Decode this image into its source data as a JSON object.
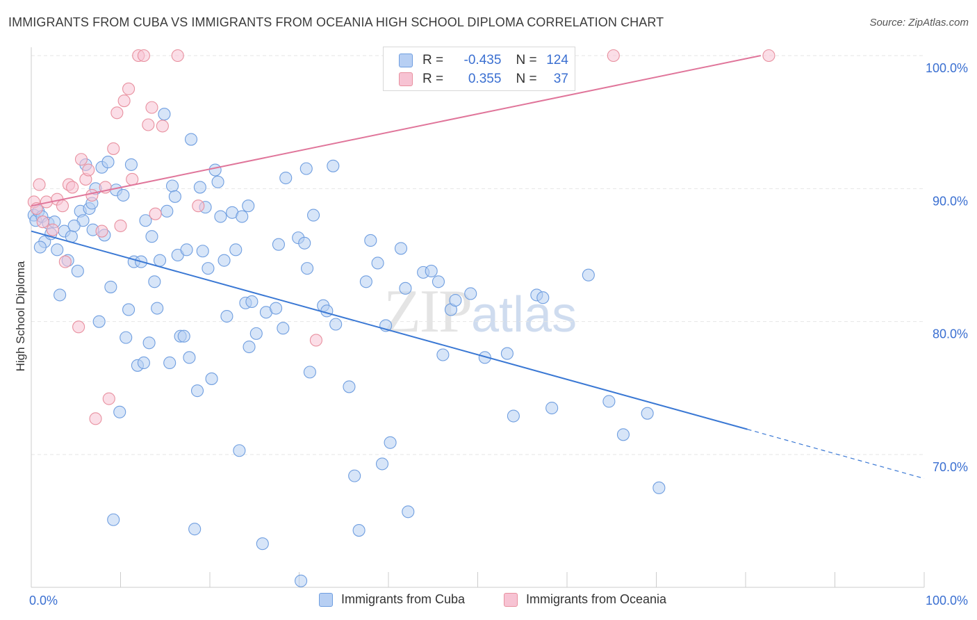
{
  "chart_data": {
    "type": "scatter",
    "title": "IMMIGRANTS FROM CUBA VS IMMIGRANTS FROM OCEANIA HIGH SCHOOL DIPLOMA CORRELATION CHART",
    "source": "Source: ZipAtlas.com",
    "ylabel": "High School Diploma",
    "xlabel": "",
    "x_tick_labels": [
      "0.0%",
      "100.0%"
    ],
    "y_tick_labels": [
      "100.0%",
      "90.0%",
      "80.0%",
      "70.0%"
    ],
    "y_ticks": [
      100,
      90,
      80,
      70
    ],
    "xlim": [
      0,
      100
    ],
    "ylim": [
      59.5,
      102.5
    ],
    "grid": true,
    "watermark": {
      "zip": "ZIP",
      "atlas": "atlas"
    },
    "legend": {
      "rows": [
        {
          "r_label": "R =",
          "r_value": "-0.435",
          "n_label": "N =",
          "n_value": "124"
        },
        {
          "r_label": "R =",
          "r_value": "0.355",
          "n_label": "N =",
          "n_value": "37"
        }
      ]
    },
    "colors": {
      "cuba_fill": "#b7cff3",
      "cuba_stroke": "#6f9ee0",
      "cuba_line": "#3a78d4",
      "oceania_fill": "#f7c3d3",
      "oceania_stroke": "#e8909f",
      "oceania_line": "#e0759a"
    },
    "series": [
      {
        "name": "Immigrants from Cuba",
        "trend": {
          "x0": 0,
          "y0": 86.8,
          "x1": 80.2,
          "y1": 71.9,
          "dash_to_x": 100,
          "dash_to_y": 68.2
        },
        "points": [
          [
            0.3,
            88.0
          ],
          [
            0.5,
            87.6
          ],
          [
            0.8,
            88.3
          ],
          [
            1.2,
            87.9
          ],
          [
            1.5,
            86.0
          ],
          [
            1.9,
            87.4
          ],
          [
            2.2,
            86.6
          ],
          [
            2.6,
            87.5
          ],
          [
            2.9,
            85.4
          ],
          [
            3.2,
            82.0
          ],
          [
            3.7,
            86.8
          ],
          [
            4.1,
            84.6
          ],
          [
            4.5,
            86.4
          ],
          [
            5.2,
            83.8
          ],
          [
            5.5,
            88.3
          ],
          [
            5.8,
            87.6
          ],
          [
            6.1,
            91.8
          ],
          [
            6.5,
            88.5
          ],
          [
            6.8,
            88.9
          ],
          [
            7.2,
            90.0
          ],
          [
            7.6,
            80.0
          ],
          [
            7.9,
            91.6
          ],
          [
            8.2,
            86.5
          ],
          [
            8.6,
            92.0
          ],
          [
            8.9,
            82.6
          ],
          [
            9.2,
            65.1
          ],
          [
            9.5,
            89.9
          ],
          [
            9.9,
            73.2
          ],
          [
            10.3,
            89.5
          ],
          [
            10.6,
            78.8
          ],
          [
            10.9,
            80.9
          ],
          [
            11.2,
            91.8
          ],
          [
            11.5,
            84.5
          ],
          [
            11.9,
            76.7
          ],
          [
            12.3,
            84.5
          ],
          [
            12.6,
            76.9
          ],
          [
            12.8,
            87.6
          ],
          [
            13.2,
            78.4
          ],
          [
            13.5,
            86.4
          ],
          [
            13.8,
            83.0
          ],
          [
            14.1,
            81.0
          ],
          [
            14.4,
            84.6
          ],
          [
            14.9,
            95.6
          ],
          [
            15.2,
            88.3
          ],
          [
            15.5,
            76.9
          ],
          [
            15.8,
            90.2
          ],
          [
            16.1,
            89.4
          ],
          [
            16.4,
            85.0
          ],
          [
            16.7,
            78.9
          ],
          [
            17.1,
            78.9
          ],
          [
            17.4,
            85.4
          ],
          [
            17.7,
            77.3
          ],
          [
            17.9,
            93.7
          ],
          [
            18.3,
            64.4
          ],
          [
            18.6,
            74.8
          ],
          [
            18.9,
            90.1
          ],
          [
            19.2,
            85.3
          ],
          [
            19.5,
            88.6
          ],
          [
            19.8,
            84.0
          ],
          [
            20.2,
            75.7
          ],
          [
            20.6,
            91.4
          ],
          [
            20.9,
            90.5
          ],
          [
            21.2,
            87.9
          ],
          [
            21.6,
            84.6
          ],
          [
            21.9,
            80.4
          ],
          [
            22.5,
            88.2
          ],
          [
            22.9,
            85.4
          ],
          [
            23.3,
            70.3
          ],
          [
            23.6,
            87.9
          ],
          [
            24.0,
            81.4
          ],
          [
            24.3,
            88.7
          ],
          [
            24.4,
            78.1
          ],
          [
            24.7,
            81.5
          ],
          [
            25.2,
            79.1
          ],
          [
            25.9,
            63.3
          ],
          [
            26.3,
            80.7
          ],
          [
            27.4,
            81.0
          ],
          [
            27.7,
            85.8
          ],
          [
            28.2,
            79.5
          ],
          [
            28.5,
            90.8
          ],
          [
            29.9,
            86.3
          ],
          [
            30.2,
            60.5
          ],
          [
            30.6,
            85.9
          ],
          [
            30.8,
            91.5
          ],
          [
            30.9,
            84.0
          ],
          [
            31.2,
            76.2
          ],
          [
            31.6,
            88.0
          ],
          [
            32.7,
            81.2
          ],
          [
            33.1,
            80.8
          ],
          [
            33.8,
            91.7
          ],
          [
            34.1,
            79.8
          ],
          [
            35.6,
            75.1
          ],
          [
            36.2,
            68.4
          ],
          [
            36.7,
            64.3
          ],
          [
            37.5,
            83.0
          ],
          [
            38.0,
            86.1
          ],
          [
            38.8,
            84.4
          ],
          [
            39.3,
            69.3
          ],
          [
            39.7,
            79.7
          ],
          [
            40.2,
            70.9
          ],
          [
            41.4,
            85.5
          ],
          [
            41.9,
            82.5
          ],
          [
            42.2,
            65.7
          ],
          [
            43.9,
            83.7
          ],
          [
            44.8,
            83.8
          ],
          [
            45.6,
            83.0
          ],
          [
            46.1,
            77.5
          ],
          [
            47.0,
            80.9
          ],
          [
            47.5,
            81.6
          ],
          [
            49.2,
            82.1
          ],
          [
            50.8,
            77.3
          ],
          [
            53.3,
            77.6
          ],
          [
            54.0,
            72.9
          ],
          [
            56.6,
            82.0
          ],
          [
            57.3,
            81.8
          ],
          [
            58.3,
            73.5
          ],
          [
            62.4,
            83.5
          ],
          [
            64.7,
            74.0
          ],
          [
            66.3,
            71.5
          ],
          [
            69.0,
            73.1
          ],
          [
            70.3,
            67.5
          ],
          [
            1.0,
            85.6
          ],
          [
            4.8,
            87.2
          ],
          [
            6.9,
            86.9
          ]
        ]
      },
      {
        "name": "Immigrants from Oceania",
        "trend": {
          "x0": 0,
          "y0": 88.7,
          "x1": 81.7,
          "y1": 100.0
        },
        "points": [
          [
            0.3,
            89.0
          ],
          [
            0.6,
            88.5
          ],
          [
            0.9,
            90.3
          ],
          [
            1.3,
            87.5
          ],
          [
            1.7,
            89.0
          ],
          [
            2.4,
            86.9
          ],
          [
            2.9,
            89.2
          ],
          [
            3.5,
            88.7
          ],
          [
            3.8,
            84.5
          ],
          [
            4.2,
            90.3
          ],
          [
            4.6,
            90.1
          ],
          [
            5.3,
            79.6
          ],
          [
            5.6,
            92.2
          ],
          [
            6.1,
            90.7
          ],
          [
            6.4,
            91.4
          ],
          [
            6.8,
            89.5
          ],
          [
            7.2,
            72.7
          ],
          [
            7.9,
            86.8
          ],
          [
            8.3,
            90.1
          ],
          [
            8.7,
            74.2
          ],
          [
            9.2,
            93.0
          ],
          [
            9.6,
            95.7
          ],
          [
            10.0,
            87.2
          ],
          [
            10.4,
            96.6
          ],
          [
            10.9,
            97.5
          ],
          [
            11.3,
            90.7
          ],
          [
            12.0,
            100.0
          ],
          [
            12.6,
            100.0
          ],
          [
            13.1,
            94.8
          ],
          [
            13.5,
            96.1
          ],
          [
            13.9,
            88.1
          ],
          [
            14.7,
            94.7
          ],
          [
            16.4,
            100.0
          ],
          [
            18.7,
            88.7
          ],
          [
            31.9,
            78.6
          ],
          [
            65.2,
            100.0
          ],
          [
            82.6,
            100.0
          ]
        ]
      }
    ]
  }
}
